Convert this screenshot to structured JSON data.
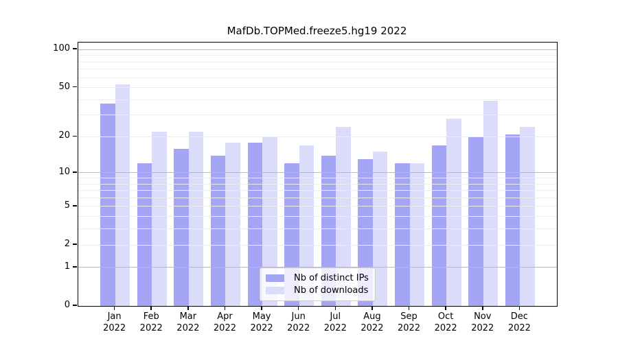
{
  "chart_data": {
    "type": "bar",
    "title": "MafDb.TOPMed.freeze5.hg19 2022",
    "categories": [
      "Jan",
      "Feb",
      "Mar",
      "Apr",
      "May",
      "Jun",
      "Jul",
      "Aug",
      "Sep",
      "Oct",
      "Nov",
      "Dec"
    ],
    "year_label": "2022",
    "series": [
      {
        "name": "Nb of distinct IPs",
        "color": "#a5a5f5",
        "values": [
          37,
          12,
          16,
          14,
          18,
          12,
          14,
          13,
          12,
          17,
          20,
          21
        ]
      },
      {
        "name": "Nb of downloads",
        "color": "#dbdbfa",
        "values": [
          53,
          22,
          22,
          18,
          20,
          17,
          24,
          15,
          12,
          28,
          39,
          24
        ]
      }
    ],
    "xlabel": "",
    "ylabel": "",
    "y_axis": {
      "scale": "log1p",
      "tick_labels": [
        100,
        50,
        20,
        10,
        5,
        2,
        1,
        0
      ],
      "major_gridlines": [
        1,
        10,
        100
      ],
      "minor_gridlines": [
        2,
        3,
        4,
        5,
        6,
        7,
        8,
        9,
        20,
        30,
        40,
        50,
        60,
        70,
        80,
        90
      ],
      "ylim": [
        0,
        115
      ]
    },
    "grid": true,
    "legend_position": "bottom-center"
  },
  "colors": {
    "major_gridline": "#b9b9b9",
    "minor_gridline": "#ececec",
    "spine": "#000000",
    "background": "#ffffff"
  }
}
